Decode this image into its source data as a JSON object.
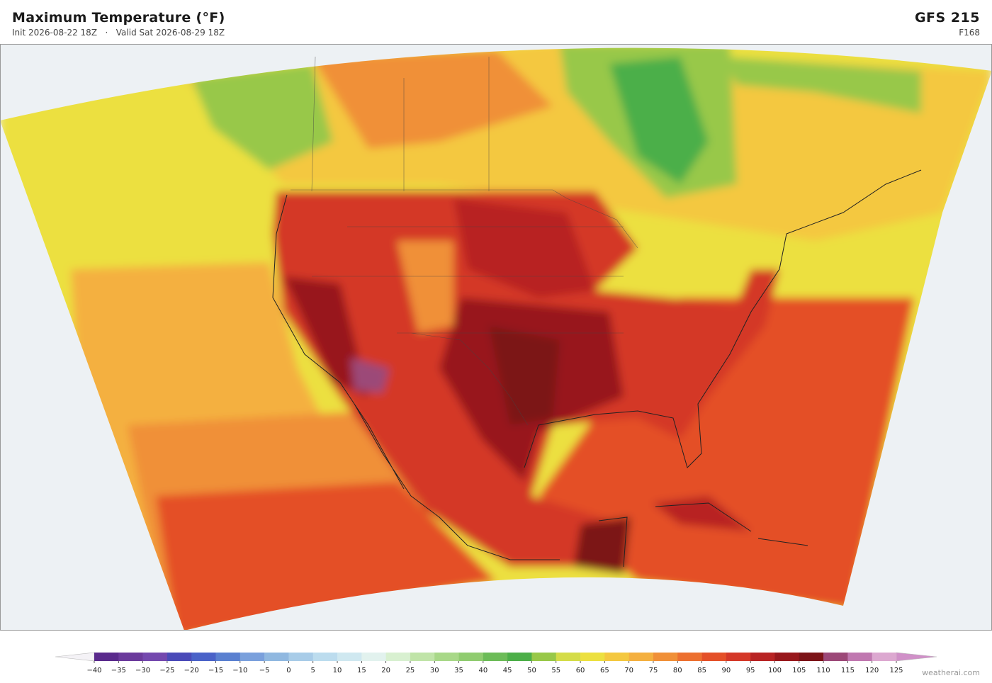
{
  "header": {
    "title": "Maximum Temperature  (°F)",
    "init": "Init 2026-08-22 18Z",
    "separator": "·",
    "valid": "Valid Sat 2026-08-29 18Z",
    "model": "GFS  215",
    "forecast_hour": "F168"
  },
  "colorbar": {
    "lim": [
      -40,
      125
    ],
    "ticks": [
      {
        "value": -40,
        "label": "−40"
      },
      {
        "value": -35,
        "label": "−35"
      },
      {
        "value": -30,
        "label": "−30"
      },
      {
        "value": -25,
        "label": "−25"
      },
      {
        "value": -20,
        "label": "−20"
      },
      {
        "value": -15,
        "label": "−15"
      },
      {
        "value": -10,
        "label": "−10"
      },
      {
        "value": -5,
        "label": "−5"
      },
      0,
      5,
      10,
      15,
      20,
      25,
      30,
      35,
      40,
      45,
      50,
      55,
      60,
      65,
      70,
      75,
      80,
      85,
      90,
      95,
      100,
      105,
      110,
      115,
      120,
      125
    ],
    "colors": [
      "#5a2a8c",
      "#6b3a9c",
      "#7448ae",
      "#4a4ab8",
      "#4a62c8",
      "#5a80d0",
      "#7aa0dc",
      "#90b8e0",
      "#a8cce8",
      "#bcdcee",
      "#cfe8f0",
      "#e2f2ee",
      "#d8f0d0",
      "#c0e4a8",
      "#a8d888",
      "#90cc70",
      "#6cbc58",
      "#4caf48",
      "#98c848",
      "#d4dc48",
      "#ece040",
      "#f4c840",
      "#f4b040",
      "#f09038",
      "#ec7030",
      "#e45028",
      "#d43828",
      "#b82424",
      "#98181c",
      "#7c1418",
      "#9c4878",
      "#c078b0",
      "#dca8d0"
    ],
    "under_color": "#f4f2f6",
    "over_color": "#d090c8"
  },
  "footer": {
    "credit": "weatherai.com"
  }
}
